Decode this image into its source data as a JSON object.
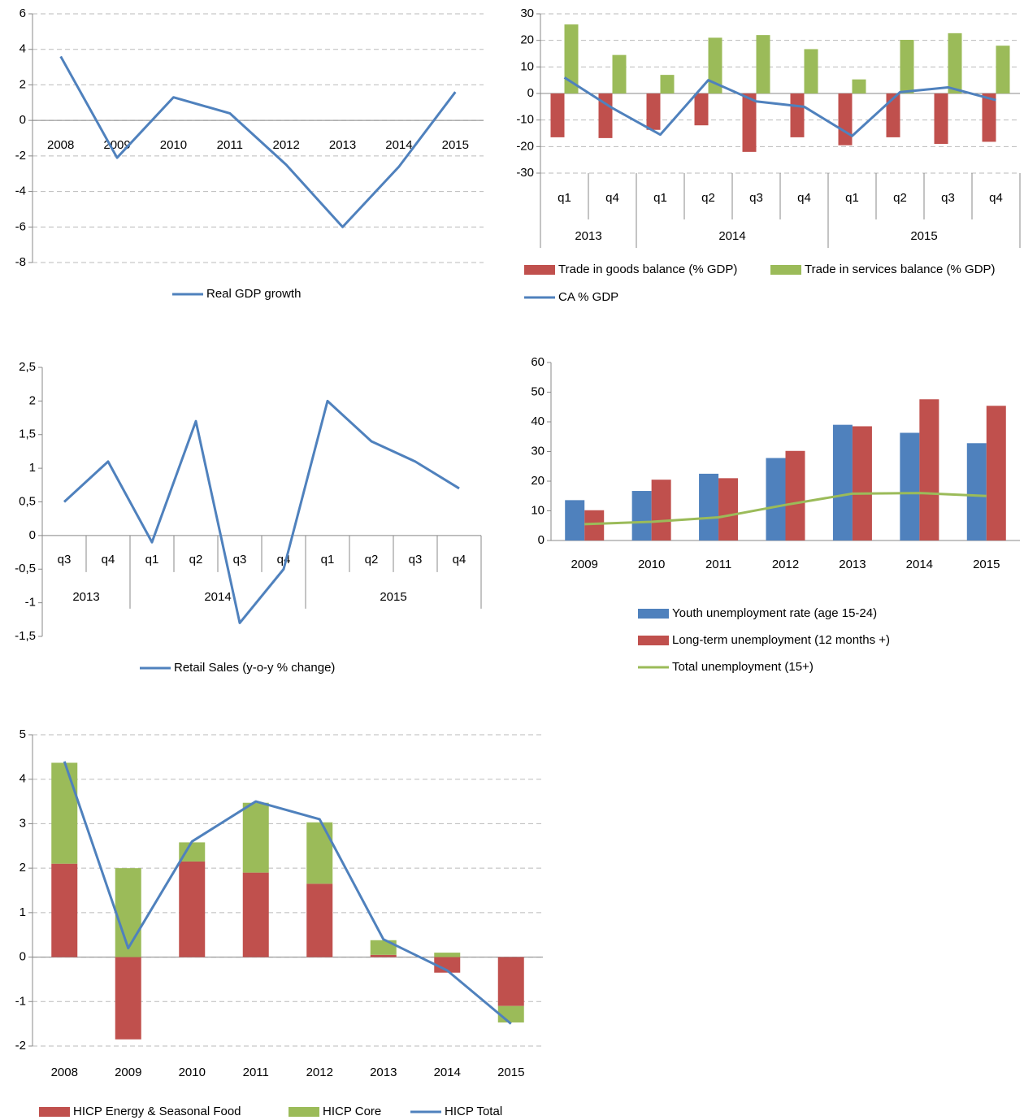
{
  "chart_data": [
    {
      "type": "line",
      "grid": true,
      "legend": "bottom",
      "categories": [
        "2008",
        "2009",
        "2010",
        "2011",
        "2012",
        "2013",
        "2014",
        "2015"
      ],
      "series": [
        {
          "name": "Real GDP growth",
          "type": "line",
          "color": "#4f81bd",
          "values": [
            3.6,
            -2.1,
            1.3,
            0.4,
            -2.5,
            -6.0,
            -2.6,
            1.6
          ]
        }
      ],
      "ylim": [
        -8,
        6
      ],
      "yticks": [
        -8,
        -6,
        -4,
        -2,
        0,
        2,
        4,
        6
      ]
    },
    {
      "type": "bar",
      "grid": true,
      "legend": "bottom",
      "groups": [
        {
          "label": "2013",
          "categories": [
            "q1",
            "q4"
          ]
        },
        {
          "label": "2014",
          "categories": [
            "q1",
            "q2",
            "q3",
            "q4"
          ]
        },
        {
          "label": "2015",
          "categories": [
            "q1",
            "q2",
            "q3",
            "q4"
          ]
        }
      ],
      "series": [
        {
          "name": "Trade in goods balance (% GDP)",
          "type": "bar",
          "color": "#c0504d",
          "values": [
            -16.5,
            -16.8,
            -13.7,
            -12,
            -22,
            -16.5,
            -19.5,
            -16.5,
            -19,
            -18.2
          ]
        },
        {
          "name": "Trade in services balance (% GDP)",
          "type": "bar",
          "color": "#9bbb59",
          "values": [
            26,
            14.5,
            7,
            21,
            22,
            16.7,
            5.3,
            20.2,
            22.7,
            18
          ]
        },
        {
          "name": "CA % GDP",
          "type": "line",
          "color": "#4f81bd",
          "values": [
            6,
            -5.5,
            -15.5,
            5,
            -3,
            -5,
            -16,
            0.5,
            2.3,
            -2.5
          ]
        }
      ],
      "ylim": [
        -30,
        30
      ],
      "yticks": [
        -30,
        -20,
        -10,
        0,
        10,
        20,
        30
      ]
    },
    {
      "type": "line",
      "grid": false,
      "legend": "bottom",
      "groups": [
        {
          "label": "2013",
          "categories": [
            "q3",
            "q4"
          ]
        },
        {
          "label": "2014",
          "categories": [
            "q1",
            "q2",
            "q3",
            "q4"
          ]
        },
        {
          "label": "2015",
          "categories": [
            "q1",
            "q2",
            "q3",
            "q4"
          ]
        }
      ],
      "series": [
        {
          "name": "Retail Sales (y-o-y % change)",
          "type": "line",
          "color": "#4f81bd",
          "values": [
            0.5,
            1.1,
            -0.1,
            1.7,
            -1.3,
            -0.5,
            2.0,
            1.4,
            1.1,
            0.7
          ]
        }
      ],
      "ylim": [
        -1.5,
        2.5
      ],
      "yticks": [
        {
          "value": -1.5,
          "label": "-1,5"
        },
        -1,
        {
          "value": -0.5,
          "label": "-0,5"
        },
        0,
        {
          "value": 0.5,
          "label": "0,5"
        },
        1,
        {
          "value": 1.5,
          "label": "1,5"
        },
        2,
        {
          "value": 2.5,
          "label": "2,5"
        }
      ]
    },
    {
      "type": "bar",
      "grid": false,
      "legend": "bottom",
      "categories": [
        "2009",
        "2010",
        "2011",
        "2012",
        "2013",
        "2014",
        "2015"
      ],
      "series": [
        {
          "name": "Youth unemployment rate (age 15-24)",
          "type": "bar",
          "color": "#4f81bd",
          "values": [
            13.6,
            16.7,
            22.5,
            27.8,
            39,
            36.3,
            32.8
          ]
        },
        {
          "name": "Long-term unemployment (12 months +)",
          "type": "bar",
          "color": "#c0504d",
          "values": [
            10.2,
            20.5,
            21,
            30.2,
            38.5,
            47.6,
            45.4
          ]
        },
        {
          "name": "Total unemployment (15+)",
          "type": "line",
          "color": "#9bbb59",
          "values": [
            5.5,
            6.3,
            7.8,
            12,
            15.8,
            16,
            15
          ]
        }
      ],
      "ylim": [
        0,
        60
      ],
      "yticks": [
        0,
        10,
        20,
        30,
        40,
        50,
        60
      ]
    },
    {
      "type": "stacked_bar",
      "grid": true,
      "legend": "bottom",
      "categories": [
        "2008",
        "2009",
        "2010",
        "2011",
        "2012",
        "2013",
        "2014",
        "2015"
      ],
      "series": [
        {
          "name": "HICP Energy & Seasonal Food",
          "type": "bar",
          "color": "#c0504d",
          "values": [
            2.1,
            -1.85,
            2.15,
            1.9,
            1.65,
            0.05,
            -0.35,
            -1.1
          ]
        },
        {
          "name": "HICP Core",
          "type": "bar",
          "color": "#9bbb59",
          "values": [
            2.27,
            2.0,
            0.43,
            1.57,
            1.38,
            0.33,
            0.1,
            -0.37
          ]
        },
        {
          "name": "HICP Total",
          "type": "line",
          "color": "#4f81bd",
          "values": [
            4.4,
            0.2,
            2.6,
            3.5,
            3.1,
            0.4,
            -0.3,
            -1.5
          ]
        }
      ],
      "ylim": [
        -2,
        5
      ],
      "yticks": [
        -2,
        -1,
        0,
        1,
        2,
        3,
        4,
        5
      ]
    }
  ]
}
